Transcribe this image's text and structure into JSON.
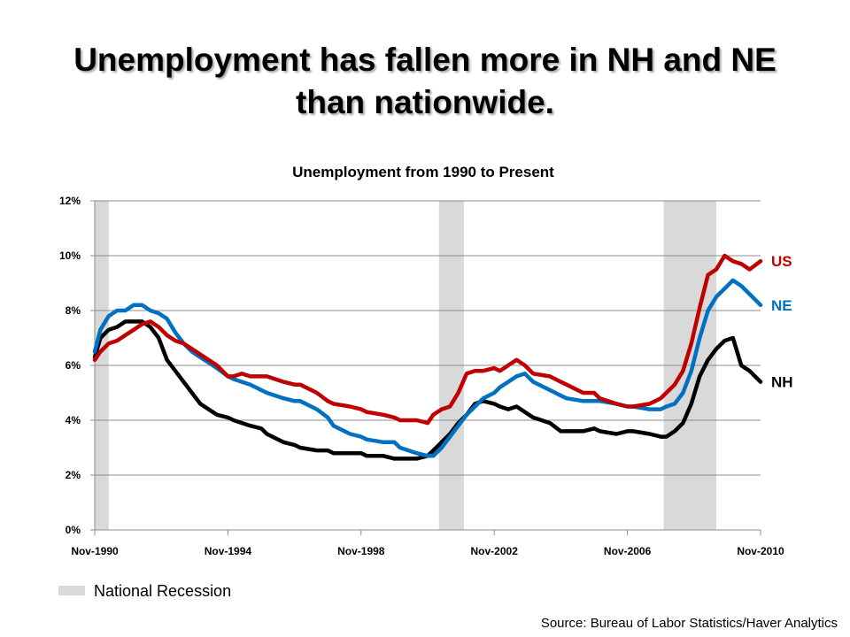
{
  "slide": {
    "title": "Unemployment has fallen more in NH and NE than nationwide.",
    "source": "Source: Bureau of Labor Statistics/Haver Analytics"
  },
  "chart_data": {
    "type": "line",
    "title": "Unemployment from 1990 to Present",
    "xlabel": "",
    "ylabel": "",
    "x_ticks": [
      "Nov-1990",
      "Nov-1994",
      "Nov-1998",
      "Nov-2002",
      "Nov-2006",
      "Nov-2010"
    ],
    "y_ticks": [
      "0%",
      "2%",
      "4%",
      "6%",
      "8%",
      "10%",
      "12%"
    ],
    "ylim": [
      0,
      12
    ],
    "xlim": [
      1990.83,
      2010.83
    ],
    "grid": true,
    "legend": {
      "label": "National Recession",
      "placement": "bottom-left",
      "color": "#d9d9d9"
    },
    "recessions": [
      [
        1990.83,
        1991.25
      ],
      [
        2001.17,
        2001.92
      ],
      [
        2007.92,
        2009.5
      ]
    ],
    "series": [
      {
        "name": "US",
        "color": "#c00000",
        "x": [
          1990.83,
          1991.0,
          1991.25,
          1991.5,
          1991.75,
          1992.0,
          1992.25,
          1992.5,
          1992.75,
          1993.0,
          1993.25,
          1993.5,
          1993.75,
          1994.0,
          1994.25,
          1994.5,
          1994.83,
          1995.0,
          1995.25,
          1995.5,
          1995.75,
          1996.0,
          1996.5,
          1996.83,
          1997.0,
          1997.5,
          1997.83,
          1998.0,
          1998.5,
          1998.83,
          1999.0,
          1999.5,
          1999.83,
          2000.0,
          2000.5,
          2000.83,
          2001.0,
          2001.25,
          2001.5,
          2001.75,
          2002.0,
          2002.25,
          2002.5,
          2002.83,
          2003.0,
          2003.25,
          2003.5,
          2003.75,
          2004.0,
          2004.5,
          2004.83,
          2005.0,
          2005.5,
          2005.83,
          2006.0,
          2006.5,
          2006.83,
          2007.0,
          2007.5,
          2007.83,
          2008.0,
          2008.25,
          2008.5,
          2008.75,
          2009.0,
          2009.25,
          2009.5,
          2009.75,
          2010.0,
          2010.25,
          2010.5,
          2010.83
        ],
        "values": [
          6.2,
          6.5,
          6.8,
          6.9,
          7.1,
          7.3,
          7.5,
          7.6,
          7.4,
          7.1,
          6.9,
          6.8,
          6.6,
          6.4,
          6.2,
          6.0,
          5.6,
          5.6,
          5.7,
          5.6,
          5.6,
          5.6,
          5.4,
          5.3,
          5.3,
          5.0,
          4.7,
          4.6,
          4.5,
          4.4,
          4.3,
          4.2,
          4.1,
          4.0,
          4.0,
          3.9,
          4.2,
          4.4,
          4.5,
          5.0,
          5.7,
          5.8,
          5.8,
          5.9,
          5.8,
          6.0,
          6.2,
          6.0,
          5.7,
          5.6,
          5.4,
          5.3,
          5.0,
          5.0,
          4.8,
          4.6,
          4.5,
          4.5,
          4.6,
          4.8,
          5.0,
          5.3,
          5.8,
          6.8,
          8.1,
          9.3,
          9.5,
          10.0,
          9.8,
          9.7,
          9.5,
          9.8
        ]
      },
      {
        "name": "NE",
        "color": "#0070c0",
        "x": [
          1990.83,
          1991.0,
          1991.25,
          1991.5,
          1991.75,
          1992.0,
          1992.25,
          1992.5,
          1992.75,
          1993.0,
          1993.25,
          1993.5,
          1993.75,
          1994.0,
          1994.25,
          1994.5,
          1994.83,
          1995.0,
          1995.5,
          1995.83,
          1996.0,
          1996.5,
          1996.83,
          1997.0,
          1997.5,
          1997.83,
          1998.0,
          1998.5,
          1998.83,
          1999.0,
          1999.5,
          1999.83,
          2000.0,
          2000.5,
          2000.83,
          2001.0,
          2001.25,
          2001.5,
          2001.75,
          2002.0,
          2002.25,
          2002.5,
          2002.83,
          2003.0,
          2003.25,
          2003.5,
          2003.75,
          2004.0,
          2004.5,
          2004.83,
          2005.0,
          2005.5,
          2005.83,
          2006.0,
          2006.5,
          2006.83,
          2007.0,
          2007.5,
          2007.83,
          2008.0,
          2008.25,
          2008.5,
          2008.75,
          2009.0,
          2009.25,
          2009.5,
          2009.75,
          2010.0,
          2010.25,
          2010.5,
          2010.83
        ],
        "values": [
          6.5,
          7.3,
          7.8,
          8.0,
          8.0,
          8.2,
          8.2,
          8.0,
          7.9,
          7.7,
          7.2,
          6.8,
          6.5,
          6.3,
          6.1,
          5.9,
          5.6,
          5.5,
          5.3,
          5.1,
          5.0,
          4.8,
          4.7,
          4.7,
          4.4,
          4.1,
          3.8,
          3.5,
          3.4,
          3.3,
          3.2,
          3.2,
          3.0,
          2.8,
          2.7,
          2.7,
          3.0,
          3.4,
          3.8,
          4.2,
          4.5,
          4.8,
          5.0,
          5.2,
          5.4,
          5.6,
          5.7,
          5.4,
          5.1,
          4.9,
          4.8,
          4.7,
          4.7,
          4.7,
          4.6,
          4.5,
          4.5,
          4.4,
          4.4,
          4.5,
          4.6,
          5.0,
          5.8,
          7.0,
          8.0,
          8.5,
          8.8,
          9.1,
          8.9,
          8.6,
          8.2
        ]
      },
      {
        "name": "NH",
        "color": "#000000",
        "x": [
          1990.83,
          1991.0,
          1991.25,
          1991.5,
          1991.75,
          1992.0,
          1992.25,
          1992.5,
          1992.75,
          1993.0,
          1993.25,
          1993.5,
          1993.75,
          1994.0,
          1994.25,
          1994.5,
          1994.83,
          1995.0,
          1995.5,
          1995.83,
          1996.0,
          1996.5,
          1996.83,
          1997.0,
          1997.5,
          1997.83,
          1998.0,
          1998.5,
          1998.83,
          1999.0,
          1999.5,
          1999.83,
          2000.0,
          2000.5,
          2000.83,
          2001.0,
          2001.25,
          2001.5,
          2001.75,
          2002.0,
          2002.25,
          2002.5,
          2002.83,
          2003.0,
          2003.25,
          2003.5,
          2003.75,
          2004.0,
          2004.5,
          2004.83,
          2005.0,
          2005.5,
          2005.83,
          2006.0,
          2006.5,
          2006.83,
          2007.0,
          2007.5,
          2007.83,
          2008.0,
          2008.25,
          2008.5,
          2008.75,
          2009.0,
          2009.25,
          2009.5,
          2009.75,
          2010.0,
          2010.25,
          2010.5,
          2010.83
        ],
        "values": [
          6.3,
          7.0,
          7.3,
          7.4,
          7.6,
          7.6,
          7.6,
          7.4,
          7.0,
          6.2,
          5.8,
          5.4,
          5.0,
          4.6,
          4.4,
          4.2,
          4.1,
          4.0,
          3.8,
          3.7,
          3.5,
          3.2,
          3.1,
          3.0,
          2.9,
          2.9,
          2.8,
          2.8,
          2.8,
          2.7,
          2.7,
          2.6,
          2.6,
          2.6,
          2.7,
          2.9,
          3.2,
          3.5,
          3.9,
          4.2,
          4.6,
          4.7,
          4.6,
          4.5,
          4.4,
          4.5,
          4.3,
          4.1,
          3.9,
          3.6,
          3.6,
          3.6,
          3.7,
          3.6,
          3.5,
          3.6,
          3.6,
          3.5,
          3.4,
          3.4,
          3.6,
          3.9,
          4.6,
          5.6,
          6.2,
          6.6,
          6.9,
          7.0,
          6.0,
          5.8,
          5.4
        ]
      }
    ]
  }
}
